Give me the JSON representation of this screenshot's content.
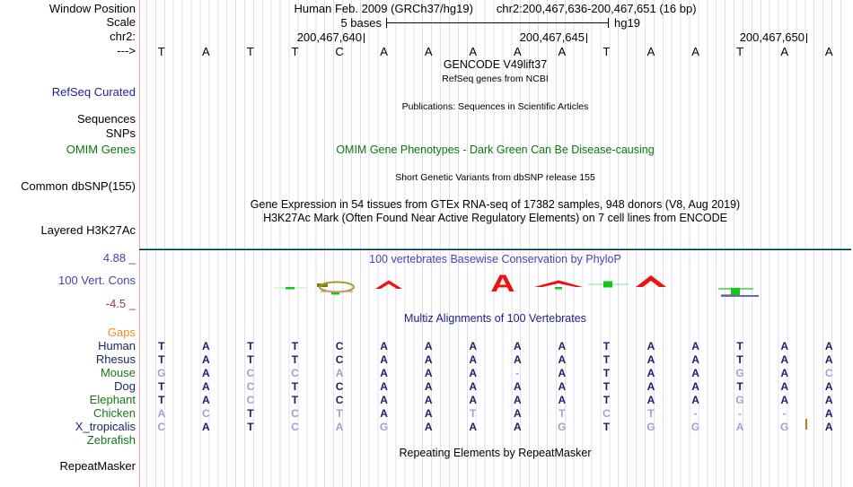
{
  "labels": {
    "window_position": "Window Position",
    "scale": "Scale",
    "chrom": "chr2:",
    "strand": "--->",
    "refseq_curated": "RefSeq Curated",
    "sequences": "Sequences",
    "snps": "SNPs",
    "omim_genes": "OMIM Genes",
    "common_dbsnp": "Common dbSNP(155)",
    "layered_h3k27ac": "Layered H3K27Ac",
    "cons_max": "4.88 _",
    "vert_cons": "100 Vert. Cons",
    "cons_min": "-4.5 _",
    "repeat_masker": "RepeatMasker"
  },
  "titles": {
    "assembly": "Human Feb. 2009 (GRCh37/hg19)",
    "position": "chr2:200,467,636-200,467,651 (16 bp)",
    "scale_value": "5 bases",
    "scale_genome": "hg19",
    "gencode": "GENCODE V49lift37",
    "refseq_sub": "RefSeq genes from NCBI",
    "publications": "Publications: Sequences in Scientific Articles",
    "omim": "OMIM Gene Phenotypes - Dark Green Can Be Disease-causing",
    "dbsnp": "Short Genetic Variants from dbSNP release 155",
    "gtex": "Gene Expression in 54 tissues from GTEx RNA-seq of 17382 samples, 948 donors (V8, Aug 2019)",
    "h3k27ac": "H3K27Ac Mark (Often Found Near Active Regulatory Elements) on 7 cell lines from ENCODE",
    "phylop": "100 vertebrates Basewise Conservation by PhyloP",
    "multiz": "Multiz Alignments of 100 Vertebrates",
    "repeats": "Repeating Elements by RepeatMasker"
  },
  "ruler": {
    "coordinates": [
      "200,467,640",
      "200,467,645",
      "200,467,650"
    ]
  },
  "sequence": [
    "T",
    "A",
    "T",
    "T",
    "C",
    "A",
    "A",
    "A",
    "A",
    "A",
    "T",
    "A",
    "A",
    "T",
    "A",
    "A"
  ],
  "alignment": {
    "rows": [
      {
        "name": "Gaps",
        "color": "#f28d1c",
        "bases": "",
        "dim": ""
      },
      {
        "name": "Human",
        "color": "#1c2566",
        "bases": "TATTCAAAAATAATAA",
        "dim": "0000000000000000"
      },
      {
        "name": "Rhesus",
        "color": "#1c2566",
        "bases": "TATTCAAAAATAATAA",
        "dim": "0000000000000000"
      },
      {
        "name": "Mouse",
        "color": "#157815",
        "bases": "GACCAAAA-ATAAGAC",
        "dim": "1011100010000101"
      },
      {
        "name": "Dog",
        "color": "#1c2566",
        "bases": "TACTCAAAAATAATAA",
        "dim": "0010000000000000"
      },
      {
        "name": "Elephant",
        "color": "#157815",
        "bases": "TACTCAAAAATAAGAA",
        "dim": "0010000000000100"
      },
      {
        "name": "Chicken",
        "color": "#157815",
        "bases": "ACTCTAATATCT---A",
        "dim": "1101100101111110"
      },
      {
        "name": "X_tropicalis",
        "color": "#1c2566",
        "bases": "CATCAGAAAGTGGAGA",
        "dim": "1001110001011110"
      },
      {
        "name": "Zebrafish",
        "color": "#157815",
        "bases": "",
        "dim": ""
      }
    ]
  },
  "colors": {
    "grid": "#dcdcf2",
    "edge_line": "#ffa0a0",
    "base_dark": "#1b2168",
    "base_dim": "#9aa3d1",
    "gaps_orange": "#f28d1c",
    "species_green": "#157815",
    "species_navy": "#1c2566",
    "phylop_title_blue": "#4343b0",
    "multiz_title_blue": "#20208c",
    "omim_green": "#0a7a0a",
    "refseq_blue": "#1f1fa0",
    "cons_max_blue": "#4343b0",
    "cons_min_maroon": "#93403d",
    "teal_line": "#2fb3a5",
    "insertion_orange": "#c87818",
    "phylop_red": "#ef1010",
    "phylop_green": "#17c417"
  }
}
